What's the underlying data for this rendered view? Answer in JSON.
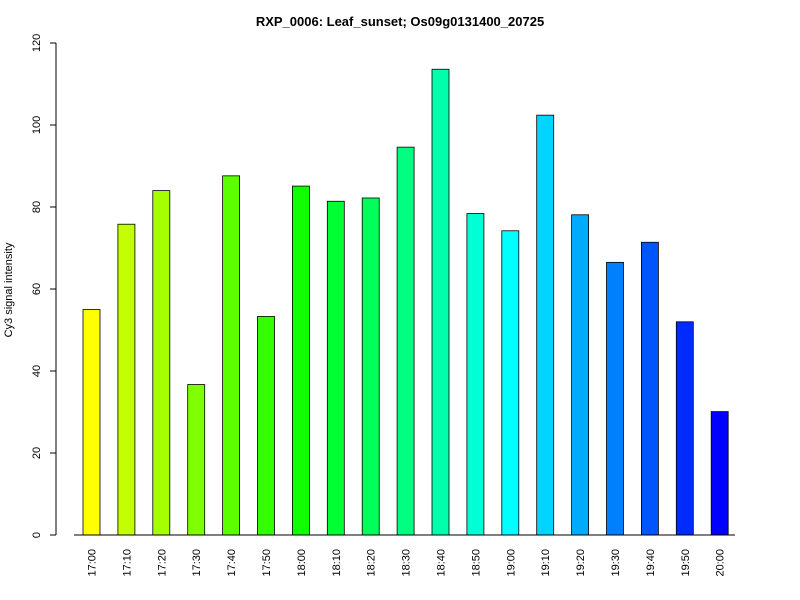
{
  "chart_data": {
    "type": "bar",
    "title": "RXP_0006: Leaf_sunset; Os09g0131400_20725",
    "xlabel": "",
    "ylabel": "Cy3 signal intensity",
    "ylim": [
      0,
      120
    ],
    "yticks": [
      0,
      20,
      40,
      60,
      80,
      100,
      120
    ],
    "grid": false,
    "categories": [
      "17:00",
      "17:10",
      "17:20",
      "17:30",
      "17:40",
      "17:50",
      "18:00",
      "18:10",
      "18:20",
      "18:30",
      "18:40",
      "18:50",
      "19:00",
      "19:10",
      "19:20",
      "19:30",
      "19:40",
      "19:50",
      "20:00"
    ],
    "values": [
      55.0,
      75.8,
      84.0,
      36.7,
      87.6,
      53.3,
      85.1,
      81.4,
      82.2,
      94.6,
      113.6,
      78.4,
      74.2,
      102.4,
      78.1,
      66.5,
      71.4,
      52.0,
      30.1
    ],
    "colors": [
      "#ffff00",
      "#c3ff00",
      "#a6ff00",
      "#80ff00",
      "#5aff00",
      "#33ff00",
      "#0fff00",
      "#00ff33",
      "#00ff5a",
      "#00ff80",
      "#00ffaa",
      "#00ffd5",
      "#00ffff",
      "#00d5ff",
      "#00aaff",
      "#0080ff",
      "#0055ff",
      "#002bff",
      "#0000ff"
    ]
  }
}
